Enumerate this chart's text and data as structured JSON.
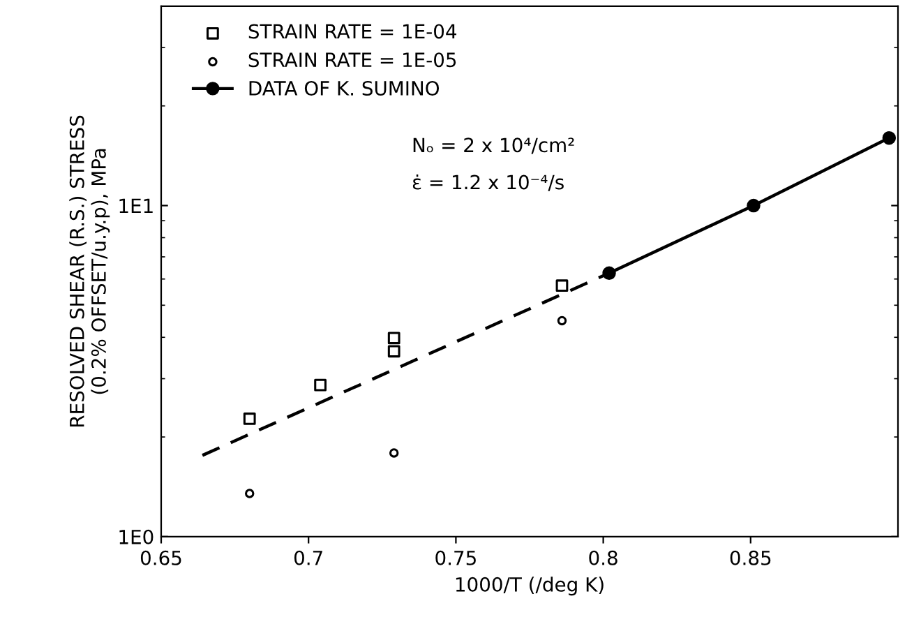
{
  "chart_data": {
    "type": "scatter",
    "xlabel": "1000/T (/deg K)",
    "ylabel": "RESOLVED SHEAR (R.S.) STRESS\n(0.2% OFFSET/u.y.p), MPa",
    "xlim": [
      0.65,
      0.9
    ],
    "xticks": [
      0.65,
      0.7,
      0.75,
      0.8,
      0.85
    ],
    "ylim": [
      1,
      40
    ],
    "yticks": [
      {
        "value": 1,
        "label": "1E0"
      },
      {
        "value": 10,
        "label": "1E1"
      }
    ],
    "log": "y",
    "grid": false,
    "legend": "top left",
    "annotations": [
      "Nₒ = 2 x 10⁴/cm²",
      "ε̇ = 1.2 x 10⁻⁴/s"
    ],
    "series": [
      {
        "name": "STRAIN RATE = 1E-04",
        "marker": "square",
        "color": "#000000",
        "x": [
          0.68,
          0.704,
          0.729,
          0.729,
          0.786
        ],
        "values": [
          2.27,
          2.87,
          3.98,
          3.63,
          5.73
        ]
      },
      {
        "name": "STRAIN RATE = 1E-05",
        "marker": "circle",
        "color": "#000000",
        "x": [
          0.68,
          0.729,
          0.786
        ],
        "values": [
          1.35,
          1.79,
          4.49
        ]
      },
      {
        "name": "DATA OF K. SUMINO",
        "type": "line",
        "marker": "circle",
        "line_style": "solid",
        "color": "#000000",
        "x": [
          0.802,
          0.851,
          0.897
        ],
        "values": [
          6.25,
          10.0,
          16.0
        ]
      },
      {
        "type": "line",
        "marker": "none",
        "line_style": "dashed",
        "color": "#000000",
        "x": [
          0.664,
          0.802
        ],
        "values": [
          1.76,
          6.25
        ]
      }
    ]
  }
}
